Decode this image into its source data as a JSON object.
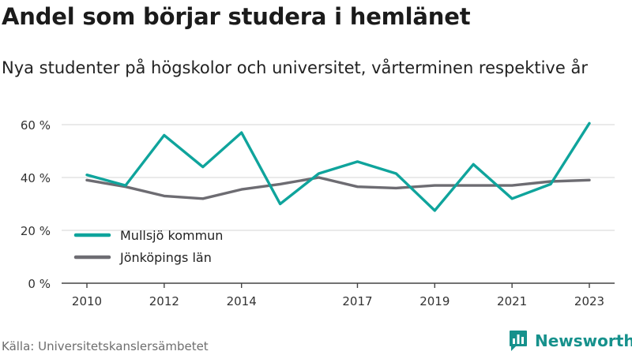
{
  "header": {
    "title": "Andel som börjar studera i hemlänet",
    "subtitle": "Nya studenter på högskolor och universitet, vårterminen respektive år"
  },
  "footer": {
    "source": "Källa: Universitetskanslersämbetet",
    "brand": "Newsworthy",
    "brand_icon": "bar-chart-speech-bubble-icon"
  },
  "colors": {
    "mullsjo": "#0fa49c",
    "jonkoping": "#6d6c72",
    "grid": "#dddddd",
    "axis": "#444444",
    "brand": "#16918c"
  },
  "chart_data": {
    "type": "line",
    "title": "Andel som börjar studera i hemlänet",
    "subtitle": "Nya studenter på högskolor och universitet, vårterminen respektive år",
    "x": [
      2010,
      2011,
      2012,
      2013,
      2014,
      2015,
      2016,
      2017,
      2018,
      2019,
      2020,
      2021,
      2022,
      2023
    ],
    "x_ticks": [
      "2010",
      "2012",
      "2014",
      "2017",
      "2019",
      "2021",
      "2023"
    ],
    "xlim": [
      2010,
      2023
    ],
    "ylim": [
      0,
      60
    ],
    "y_ticks": [
      0,
      20,
      40,
      60
    ],
    "y_tick_labels": [
      "0 %",
      "20 %",
      "40 %",
      "60 %"
    ],
    "grid": "horizontal",
    "legend_position": "bottom-left",
    "series": [
      {
        "name": "Mullsjö kommun",
        "color": "#0fa49c",
        "values": [
          41,
          37,
          56,
          44,
          57,
          30,
          41.5,
          46,
          41.5,
          27.5,
          45,
          32,
          37.5,
          60.5
        ]
      },
      {
        "name": "Jönköpings län",
        "color": "#6d6c72",
        "values": [
          39,
          36.5,
          33,
          32,
          35.5,
          37.5,
          40,
          36.5,
          36,
          37,
          37,
          37,
          38.5,
          39
        ]
      }
    ]
  }
}
